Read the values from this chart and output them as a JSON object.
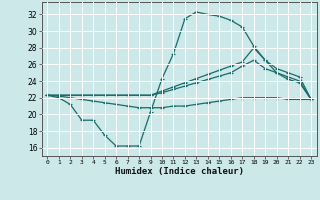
{
  "xlabel": "Humidex (Indice chaleur)",
  "background_color": "#cce8e8",
  "grid_color": "#ffffff",
  "line_color": "#1a6b6b",
  "xlim": [
    -0.5,
    23.5
  ],
  "ylim": [
    15.0,
    33.5
  ],
  "yticks": [
    16,
    18,
    20,
    22,
    24,
    26,
    28,
    30,
    32
  ],
  "xtick_labels": [
    "0",
    "1",
    "2",
    "3",
    "4",
    "5",
    "6",
    "7",
    "8",
    "9",
    "10",
    "11",
    "12",
    "13",
    "14",
    "15",
    "16",
    "17",
    "18",
    "19",
    "20",
    "21",
    "22",
    "23"
  ],
  "series": {
    "curve1_x": [
      0,
      1,
      2,
      3,
      4,
      5,
      6,
      7,
      8,
      9,
      10,
      11,
      12,
      13,
      14,
      15,
      16,
      17,
      18,
      19,
      20,
      21,
      22,
      23
    ],
    "curve1_y": [
      22.3,
      22.0,
      21.2,
      19.3,
      19.3,
      17.5,
      16.2,
      16.2,
      16.2,
      20.3,
      24.3,
      27.3,
      31.5,
      32.3,
      32.0,
      31.8,
      31.3,
      30.5,
      28.2,
      26.5,
      25.0,
      24.2,
      23.8,
      21.8
    ],
    "curve2_x": [
      0,
      1,
      2,
      3,
      4,
      5,
      6,
      7,
      8,
      9,
      10,
      11,
      12,
      13,
      14,
      15,
      16,
      17,
      18,
      19,
      20,
      21,
      22,
      23
    ],
    "curve2_y": [
      22.3,
      22.3,
      22.3,
      22.3,
      22.3,
      22.3,
      22.3,
      22.3,
      22.3,
      22.3,
      22.8,
      23.3,
      23.8,
      24.3,
      24.8,
      25.3,
      25.8,
      26.3,
      28.0,
      26.5,
      25.5,
      25.0,
      24.5,
      21.8
    ],
    "curve3_x": [
      0,
      1,
      2,
      3,
      4,
      5,
      6,
      7,
      8,
      9,
      10,
      11,
      12,
      13,
      14,
      15,
      16,
      17,
      18,
      19,
      20,
      21,
      22,
      23
    ],
    "curve3_y": [
      22.3,
      22.3,
      22.3,
      22.3,
      22.3,
      22.3,
      22.3,
      22.3,
      22.3,
      22.3,
      22.6,
      23.0,
      23.4,
      23.8,
      24.2,
      24.6,
      25.0,
      25.8,
      26.5,
      25.5,
      25.0,
      24.5,
      24.0,
      21.8
    ],
    "curve4_x": [
      0,
      1,
      2,
      3,
      4,
      5,
      6,
      7,
      8,
      9,
      10,
      11,
      12,
      13,
      14,
      15,
      16,
      17,
      18,
      19,
      20,
      21,
      22,
      23
    ],
    "curve4_y": [
      22.3,
      22.2,
      22.0,
      21.8,
      21.6,
      21.4,
      21.2,
      21.0,
      20.8,
      20.8,
      20.8,
      21.0,
      21.0,
      21.2,
      21.4,
      21.6,
      21.8,
      22.0,
      22.0,
      22.0,
      22.0,
      21.8,
      21.8,
      21.8
    ]
  }
}
